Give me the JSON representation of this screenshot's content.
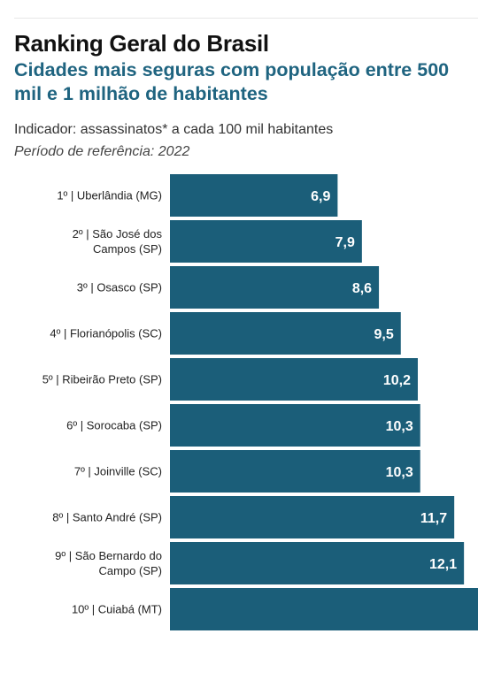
{
  "header": {
    "title": "Ranking Geral do Brasil",
    "subtitle": "Cidades mais seguras com população entre 500 mil e 1 milhão de habitantes",
    "indicator": "Indicador: assassinatos* a cada 100 mil habitantes",
    "period": "Período de referência: 2022"
  },
  "chart_data": {
    "type": "bar",
    "orientation": "horizontal",
    "title": "Ranking Geral do Brasil",
    "subtitle": "Cidades mais seguras com população entre 500 mil e 1 milhão de habitantes",
    "categories": [
      [
        "1º | Uberlândia (MG)"
      ],
      [
        "2º | São José dos",
        "Campos (SP)"
      ],
      [
        "3º | Osasco (SP)"
      ],
      [
        "4º | Florianópolis (SC)"
      ],
      [
        "5º | Ribeirão Preto (SP)"
      ],
      [
        "6º | Sorocaba (SP)"
      ],
      [
        "7º | Joinville (SC)"
      ],
      [
        "8º | Santo André (SP)"
      ],
      [
        "9º | São Bernardo do",
        "Campo (SP)"
      ],
      [
        "10º | Cuiabá (MT)"
      ]
    ],
    "values": [
      6.9,
      7.9,
      8.6,
      9.5,
      10.2,
      10.3,
      10.3,
      11.7,
      12.1,
      13.0
    ],
    "value_labels": [
      "6,9",
      "7,9",
      "8,6",
      "9,5",
      "10,2",
      "10,3",
      "10,3",
      "11,7",
      "12,1",
      ""
    ],
    "bar_color": "#1b5e79",
    "grid": false,
    "legend": "none"
  }
}
